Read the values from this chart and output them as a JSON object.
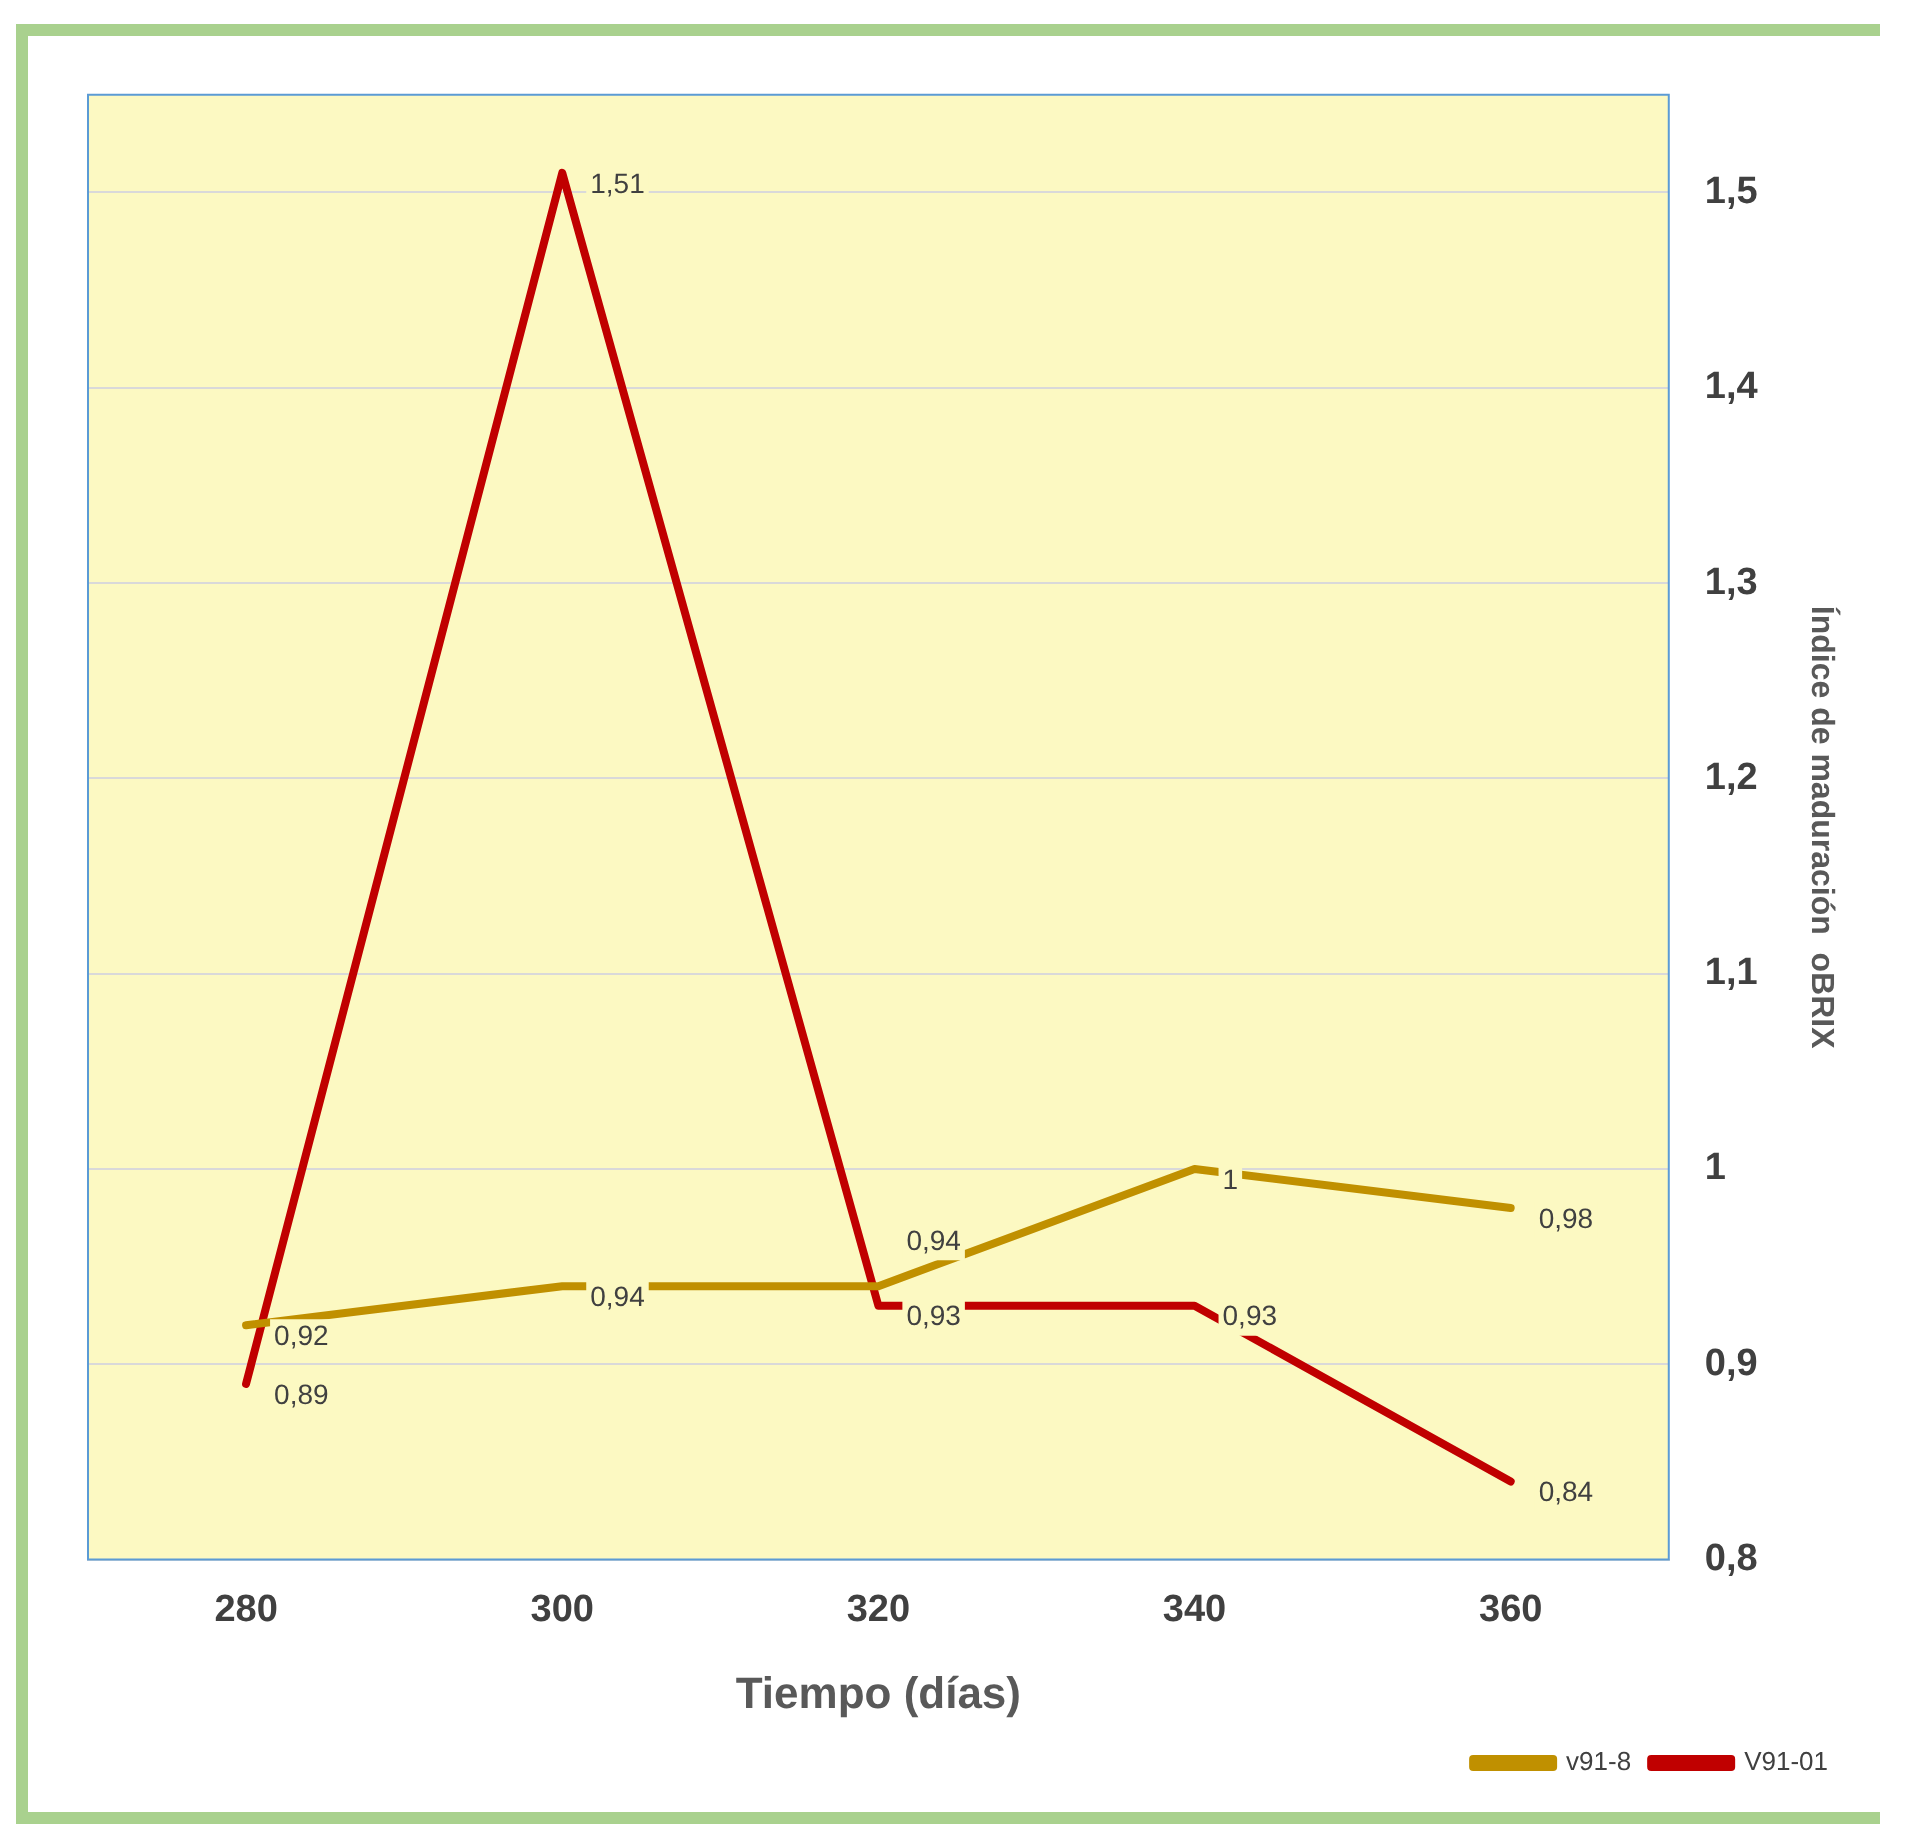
{
  "chart_data": {
    "type": "line",
    "xlabel": "Tiempo (días)",
    "ylabel": "Índice de maduración  oBRIX",
    "categories": [
      "280",
      "300",
      "320",
      "340",
      "360"
    ],
    "series": [
      {
        "name": "v91-8",
        "color": "#c09000",
        "values": [
          0.92,
          0.94,
          0.94,
          1,
          0.98
        ],
        "value_labels": [
          "0,92",
          "0,94",
          "0,94",
          "1",
          "0,98"
        ]
      },
      {
        "name": "V91-01",
        "color": "#c00000",
        "values": [
          0.89,
          1.51,
          0.93,
          0.93,
          0.84
        ],
        "value_labels": [
          "0,89",
          "1,51",
          "0,93",
          "0,93",
          "0,84"
        ]
      }
    ],
    "ylim": [
      0.8,
      1.55
    ],
    "yticks": [
      {
        "value": 0.8,
        "label": "0,8"
      },
      {
        "value": 0.9,
        "label": "0,9"
      },
      1,
      {
        "value": 1.1,
        "label": "1,1"
      },
      {
        "value": 1.2,
        "label": "1,2"
      },
      {
        "value": 1.3,
        "label": "1,3"
      },
      {
        "value": 1.4,
        "label": "1,4"
      },
      {
        "value": 1.5,
        "label": "1,5"
      }
    ],
    "grid": "y",
    "legend": "bottom right",
    "marker": "none",
    "line_style": "solid"
  }
}
